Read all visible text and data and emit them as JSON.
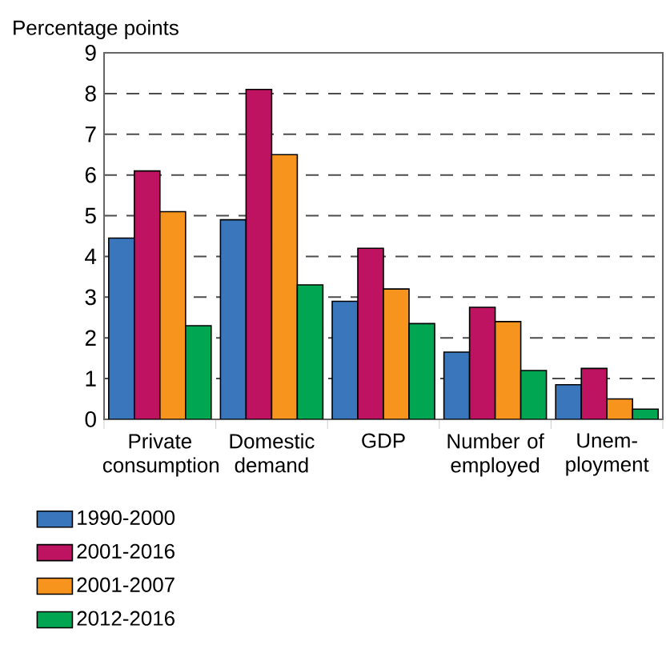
{
  "chart_data": {
    "type": "bar",
    "ylabel": "Percentage points",
    "categories": [
      "Private consumption",
      "Domestic demand",
      "GDP",
      "Number of employed",
      "Unem-ployment"
    ],
    "series": [
      {
        "name": "1990-2000",
        "color": "#3a76bb",
        "values": [
          4.45,
          4.9,
          2.9,
          1.65,
          0.85
        ]
      },
      {
        "name": "2001-2016",
        "color": "#bd1360",
        "values": [
          6.1,
          8.1,
          4.2,
          2.75,
          1.25
        ]
      },
      {
        "name": "2001-2007",
        "color": "#f7941d",
        "values": [
          5.1,
          6.5,
          3.2,
          2.4,
          0.5
        ]
      },
      {
        "name": "2012-2016",
        "color": "#00a651",
        "values": [
          2.3,
          3.3,
          2.35,
          1.2,
          0.25
        ]
      }
    ],
    "ylim": [
      0,
      9
    ],
    "yticks": [
      0,
      1,
      2,
      3,
      4,
      5,
      6,
      7,
      8,
      9
    ],
    "grid": "y",
    "legend": "bottom"
  }
}
